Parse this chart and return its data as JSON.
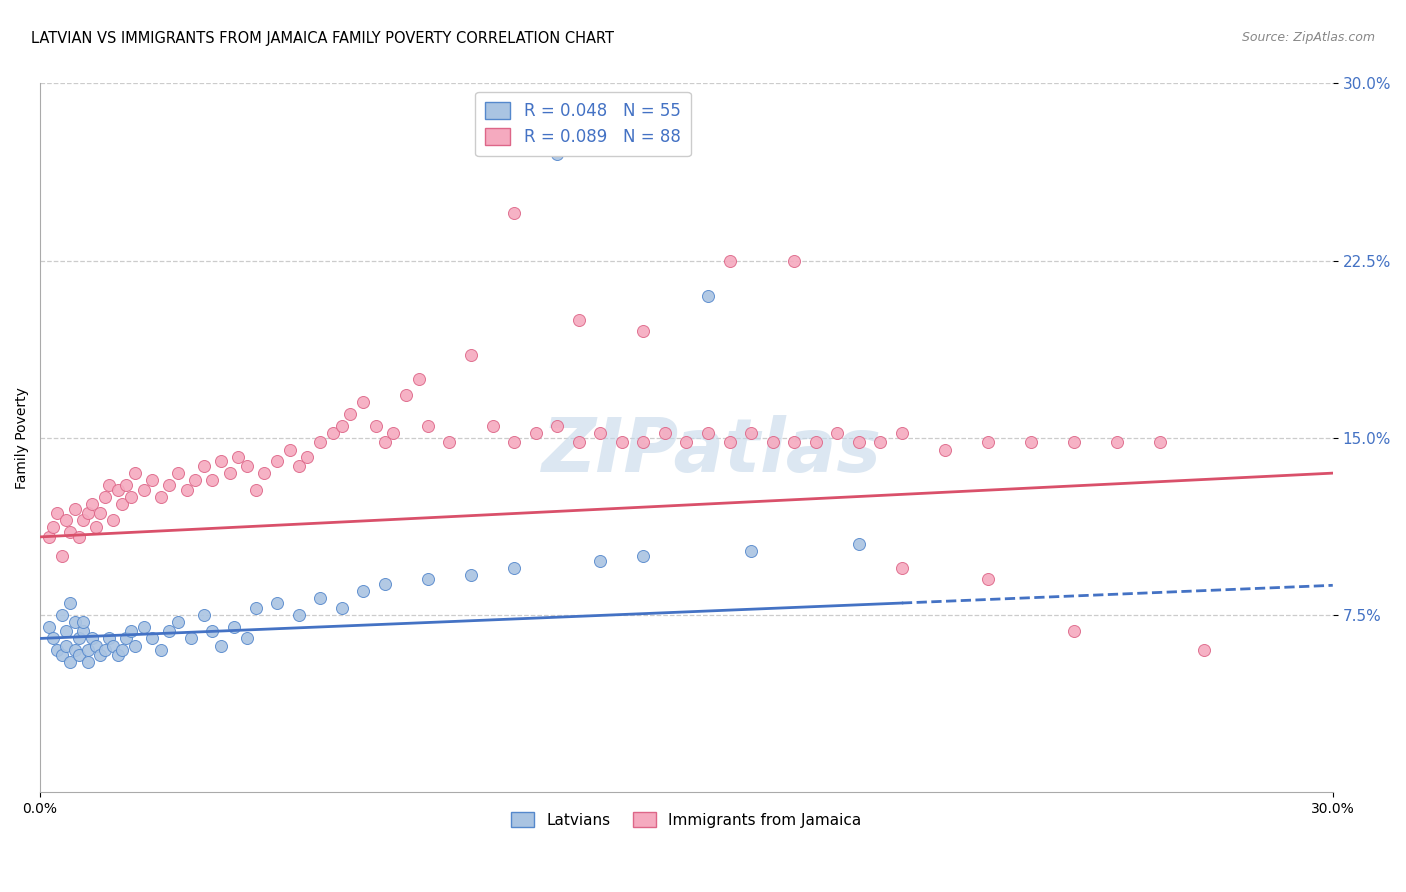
{
  "title": "LATVIAN VS IMMIGRANTS FROM JAMAICA FAMILY POVERTY CORRELATION CHART",
  "source": "Source: ZipAtlas.com",
  "ylabel": "Family Poverty",
  "xlim": [
    0.0,
    0.3
  ],
  "ylim": [
    0.0,
    0.3
  ],
  "latvian_R": 0.048,
  "latvian_N": 55,
  "jamaica_R": 0.089,
  "jamaica_N": 88,
  "latvian_color": "#aac4e2",
  "jamaica_color": "#f5aabf",
  "latvian_edge_color": "#5588cc",
  "jamaica_edge_color": "#dd6688",
  "trend_latvian_color": "#4472c4",
  "trend_jamaica_color": "#d9506a",
  "legend_label_latvian": "Latvians",
  "legend_label_jamaica": "Immigrants from Jamaica",
  "watermark": "ZIPatlas",
  "watermark_color": "#c5d8ea",
  "grid_color": "#cccccc",
  "background_color": "#ffffff",
  "tick_label_color": "#4472c4",
  "lat_x": [
    0.002,
    0.003,
    0.004,
    0.005,
    0.005,
    0.006,
    0.006,
    0.007,
    0.007,
    0.008,
    0.008,
    0.009,
    0.009,
    0.01,
    0.01,
    0.011,
    0.011,
    0.012,
    0.013,
    0.014,
    0.015,
    0.016,
    0.017,
    0.018,
    0.019,
    0.02,
    0.021,
    0.022,
    0.024,
    0.026,
    0.028,
    0.03,
    0.032,
    0.035,
    0.038,
    0.04,
    0.042,
    0.045,
    0.048,
    0.05,
    0.055,
    0.06,
    0.065,
    0.07,
    0.075,
    0.08,
    0.09,
    0.1,
    0.11,
    0.12,
    0.13,
    0.14,
    0.155,
    0.165,
    0.19
  ],
  "lat_y": [
    0.07,
    0.065,
    0.06,
    0.058,
    0.075,
    0.062,
    0.068,
    0.055,
    0.08,
    0.06,
    0.072,
    0.065,
    0.058,
    0.068,
    0.072,
    0.06,
    0.055,
    0.065,
    0.062,
    0.058,
    0.06,
    0.065,
    0.062,
    0.058,
    0.06,
    0.065,
    0.068,
    0.062,
    0.07,
    0.065,
    0.06,
    0.068,
    0.072,
    0.065,
    0.075,
    0.068,
    0.062,
    0.07,
    0.065,
    0.078,
    0.08,
    0.075,
    0.082,
    0.078,
    0.085,
    0.088,
    0.09,
    0.092,
    0.095,
    0.27,
    0.098,
    0.1,
    0.21,
    0.102,
    0.105
  ],
  "jam_x": [
    0.002,
    0.003,
    0.004,
    0.005,
    0.006,
    0.007,
    0.008,
    0.009,
    0.01,
    0.011,
    0.012,
    0.013,
    0.014,
    0.015,
    0.016,
    0.017,
    0.018,
    0.019,
    0.02,
    0.021,
    0.022,
    0.024,
    0.026,
    0.028,
    0.03,
    0.032,
    0.034,
    0.036,
    0.038,
    0.04,
    0.042,
    0.044,
    0.046,
    0.048,
    0.05,
    0.052,
    0.055,
    0.058,
    0.06,
    0.062,
    0.065,
    0.068,
    0.07,
    0.072,
    0.075,
    0.078,
    0.08,
    0.082,
    0.085,
    0.088,
    0.09,
    0.095,
    0.1,
    0.105,
    0.11,
    0.115,
    0.12,
    0.125,
    0.13,
    0.135,
    0.14,
    0.145,
    0.15,
    0.155,
    0.16,
    0.165,
    0.17,
    0.175,
    0.18,
    0.185,
    0.19,
    0.195,
    0.2,
    0.21,
    0.22,
    0.23,
    0.24,
    0.25,
    0.26,
    0.27,
    0.11,
    0.125,
    0.14,
    0.16,
    0.175,
    0.2,
    0.22,
    0.24
  ],
  "jam_y": [
    0.108,
    0.112,
    0.118,
    0.1,
    0.115,
    0.11,
    0.12,
    0.108,
    0.115,
    0.118,
    0.122,
    0.112,
    0.118,
    0.125,
    0.13,
    0.115,
    0.128,
    0.122,
    0.13,
    0.125,
    0.135,
    0.128,
    0.132,
    0.125,
    0.13,
    0.135,
    0.128,
    0.132,
    0.138,
    0.132,
    0.14,
    0.135,
    0.142,
    0.138,
    0.128,
    0.135,
    0.14,
    0.145,
    0.138,
    0.142,
    0.148,
    0.152,
    0.155,
    0.16,
    0.165,
    0.155,
    0.148,
    0.152,
    0.168,
    0.175,
    0.155,
    0.148,
    0.185,
    0.155,
    0.148,
    0.152,
    0.155,
    0.148,
    0.152,
    0.148,
    0.148,
    0.152,
    0.148,
    0.152,
    0.148,
    0.152,
    0.148,
    0.148,
    0.148,
    0.152,
    0.148,
    0.148,
    0.152,
    0.145,
    0.148,
    0.148,
    0.148,
    0.148,
    0.148,
    0.06,
    0.245,
    0.2,
    0.195,
    0.225,
    0.225,
    0.095,
    0.09,
    0.068
  ]
}
